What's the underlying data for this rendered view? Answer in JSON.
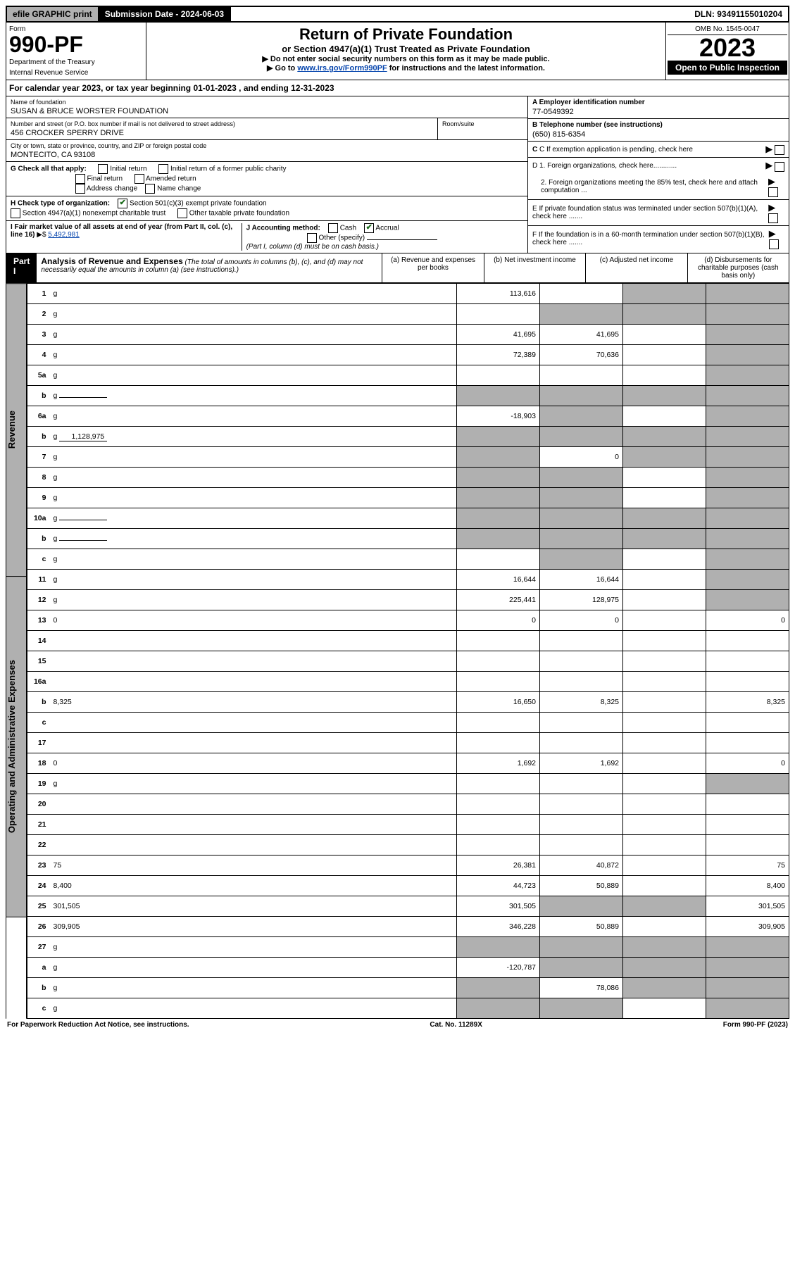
{
  "topbar": {
    "efile": "efile GRAPHIC print",
    "subdate_label": "Submission Date - 2024-06-03",
    "dln": "DLN: 93491155010204"
  },
  "header": {
    "form": "Form",
    "form_num": "990-PF",
    "dept": "Department of the Treasury",
    "irs": "Internal Revenue Service",
    "title": "Return of Private Foundation",
    "subtitle": "or Section 4947(a)(1) Trust Treated as Private Foundation",
    "note1": "▶ Do not enter social security numbers on this form as it may be made public.",
    "note2_pre": "▶ Go to ",
    "note2_link": "www.irs.gov/Form990PF",
    "note2_post": " for instructions and the latest information.",
    "omb": "OMB No. 1545-0047",
    "year": "2023",
    "open": "Open to Public Inspection"
  },
  "calyear": "For calendar year 2023, or tax year beginning 01-01-2023                           , and ending 12-31-2023",
  "entity": {
    "name_label": "Name of foundation",
    "name": "SUSAN & BRUCE WORSTER FOUNDATION",
    "addr_label": "Number and street (or P.O. box number if mail is not delivered to street address)",
    "addr": "456 CROCKER SPERRY DRIVE",
    "room_label": "Room/suite",
    "city_label": "City or town, state or province, country, and ZIP or foreign postal code",
    "city": "MONTECITO, CA  93108",
    "a_label": "A Employer identification number",
    "a_val": "77-0549392",
    "b_label": "B Telephone number (see instructions)",
    "b_val": "(650) 815-6354",
    "c_label": "C If exemption application is pending, check here",
    "d1": "D 1. Foreign organizations, check here............",
    "d2": "2. Foreign organizations meeting the 85% test, check here and attach computation ...",
    "e": "E  If private foundation status was terminated under section 507(b)(1)(A), check here .......",
    "f": "F  If the foundation is in a 60-month termination under section 507(b)(1)(B), check here .......",
    "g_label": "G Check all that apply:",
    "g_opts": [
      "Initial return",
      "Initial return of a former public charity",
      "Final return",
      "Amended return",
      "Address change",
      "Name change"
    ],
    "h_label": "H Check type of organization:",
    "h_opt1": "Section 501(c)(3) exempt private foundation",
    "h_opt2": "Section 4947(a)(1) nonexempt charitable trust",
    "h_opt3": "Other taxable private foundation",
    "i_label": "I Fair market value of all assets at end of year (from Part II, col. (c), line 16)",
    "i_val": "5,492,981",
    "j_label": "J Accounting method:",
    "j_cash": "Cash",
    "j_accrual": "Accrual",
    "j_other": "Other (specify)",
    "j_note": "(Part I, column (d) must be on cash basis.)"
  },
  "part1": {
    "label": "Part I",
    "title": "Analysis of Revenue and Expenses",
    "title_note": " (The total of amounts in columns (b), (c), and (d) may not necessarily equal the amounts in column (a) (see instructions).)",
    "col_a": "(a)  Revenue and expenses per books",
    "col_b": "(b)  Net investment income",
    "col_c": "(c)  Adjusted net income",
    "col_d": "(d)  Disbursements for charitable purposes (cash basis only)"
  },
  "sidelabels": {
    "revenue": "Revenue",
    "expenses": "Operating and Administrative Expenses"
  },
  "rows": [
    {
      "n": "1",
      "d": "g",
      "a": "113,616",
      "b": "",
      "c": "g"
    },
    {
      "n": "2",
      "d": "g",
      "a": "",
      "b": "g",
      "c": "g"
    },
    {
      "n": "3",
      "d": "g",
      "a": "41,695",
      "b": "41,695",
      "c": ""
    },
    {
      "n": "4",
      "d": "g",
      "a": "72,389",
      "b": "70,636",
      "c": ""
    },
    {
      "n": "5a",
      "d": "g",
      "a": "",
      "b": "",
      "c": ""
    },
    {
      "n": "b",
      "d": "g",
      "a": "g",
      "b": "g",
      "c": "g",
      "inline": true,
      "inlineVal": ""
    },
    {
      "n": "6a",
      "d": "g",
      "a": "-18,903",
      "b": "g",
      "c": ""
    },
    {
      "n": "b",
      "d": "g",
      "a": "g",
      "b": "g",
      "c": "g",
      "inline": true,
      "inlineVal": "1,128,975"
    },
    {
      "n": "7",
      "d": "g",
      "a": "g",
      "b": "0",
      "c": "g"
    },
    {
      "n": "8",
      "d": "g",
      "a": "g",
      "b": "g",
      "c": ""
    },
    {
      "n": "9",
      "d": "g",
      "a": "g",
      "b": "g",
      "c": ""
    },
    {
      "n": "10a",
      "d": "g",
      "a": "g",
      "b": "g",
      "c": "g",
      "inline": true,
      "inlineVal": ""
    },
    {
      "n": "b",
      "d": "g",
      "a": "g",
      "b": "g",
      "c": "g",
      "inline": true,
      "inlineVal": ""
    },
    {
      "n": "c",
      "d": "g",
      "a": "",
      "b": "g",
      "c": ""
    },
    {
      "n": "11",
      "d": "g",
      "a": "16,644",
      "b": "16,644",
      "c": ""
    },
    {
      "n": "12",
      "d": "g",
      "a": "225,441",
      "b": "128,975",
      "c": ""
    },
    {
      "n": "13",
      "d": "0",
      "a": "0",
      "b": "0",
      "c": ""
    },
    {
      "n": "14",
      "d": "",
      "a": "",
      "b": "",
      "c": ""
    },
    {
      "n": "15",
      "d": "",
      "a": "",
      "b": "",
      "c": ""
    },
    {
      "n": "16a",
      "d": "",
      "a": "",
      "b": "",
      "c": ""
    },
    {
      "n": "b",
      "d": "8,325",
      "a": "16,650",
      "b": "8,325",
      "c": ""
    },
    {
      "n": "c",
      "d": "",
      "a": "",
      "b": "",
      "c": ""
    },
    {
      "n": "17",
      "d": "",
      "a": "",
      "b": "",
      "c": ""
    },
    {
      "n": "18",
      "d": "0",
      "a": "1,692",
      "b": "1,692",
      "c": ""
    },
    {
      "n": "19",
      "d": "g",
      "a": "",
      "b": "",
      "c": ""
    },
    {
      "n": "20",
      "d": "",
      "a": "",
      "b": "",
      "c": ""
    },
    {
      "n": "21",
      "d": "",
      "a": "",
      "b": "",
      "c": ""
    },
    {
      "n": "22",
      "d": "",
      "a": "",
      "b": "",
      "c": ""
    },
    {
      "n": "23",
      "d": "75",
      "a": "26,381",
      "b": "40,872",
      "c": ""
    },
    {
      "n": "24",
      "d": "8,400",
      "a": "44,723",
      "b": "50,889",
      "c": ""
    },
    {
      "n": "25",
      "d": "301,505",
      "a": "301,505",
      "b": "g",
      "c": "g"
    },
    {
      "n": "26",
      "d": "309,905",
      "a": "346,228",
      "b": "50,889",
      "c": ""
    },
    {
      "n": "27",
      "d": "g",
      "a": "g",
      "b": "g",
      "c": "g"
    },
    {
      "n": "a",
      "d": "g",
      "a": "-120,787",
      "b": "g",
      "c": "g"
    },
    {
      "n": "b",
      "d": "g",
      "a": "g",
      "b": "78,086",
      "c": "g"
    },
    {
      "n": "c",
      "d": "g",
      "a": "g",
      "b": "g",
      "c": ""
    }
  ],
  "footer": {
    "left": "For Paperwork Reduction Act Notice, see instructions.",
    "mid": "Cat. No. 11289X",
    "right": "Form 990-PF (2023)"
  }
}
